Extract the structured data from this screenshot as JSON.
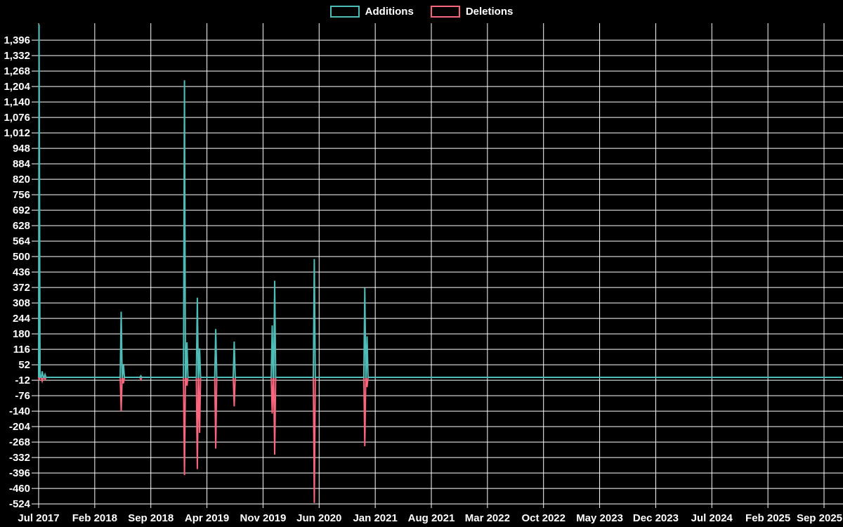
{
  "legend": {
    "additions_label": "Additions",
    "deletions_label": "Deletions"
  },
  "colors": {
    "background": "#000000",
    "gridline": "#ffffff",
    "label_text": "#ffffff",
    "additions": "#4FBDB7",
    "deletions": "#F8657D"
  },
  "chart_data": {
    "type": "line",
    "title": "",
    "legend_entries": [
      {
        "label": "Additions",
        "color": "#4FBDB7"
      },
      {
        "label": "Deletions",
        "color": "#F8657D"
      }
    ],
    "legend_position": "top-center",
    "grid": true,
    "xlabel": "",
    "ylabel": "",
    "y_axis": {
      "min": -524,
      "max": 1396,
      "tick_step": 64
    },
    "y_tick_labels": [
      "1,396",
      "1,332",
      "1,268",
      "1,204",
      "1,140",
      "1,076",
      "1,012",
      "948",
      "884",
      "820",
      "756",
      "692",
      "628",
      "564",
      "500",
      "436",
      "372",
      "308",
      "244",
      "180",
      "116",
      "52",
      "-12",
      "-76",
      "-140",
      "-204",
      "-268",
      "-332",
      "-396",
      "-460",
      "-524"
    ],
    "x_axis": {
      "start": "Jul 2017",
      "end": "Sep 2025",
      "tick_every_months": 7,
      "total_months": 98
    },
    "x_tick_labels": [
      "Jul 2017",
      "Feb 2018",
      "Sep 2018",
      "Apr 2019",
      "Nov 2019",
      "Jun 2020",
      "Jan 2021",
      "Aug 2021",
      "Mar 2022",
      "Oct 2022",
      "May 2023",
      "Dec 2023",
      "Jul 2024",
      "Feb 2025",
      "Sep 2025"
    ],
    "baseline_value": 0,
    "series_names": [
      "Additions",
      "Deletions"
    ],
    "events": [
      {
        "month": 0.05,
        "additions": 1460,
        "deletions": -12
      },
      {
        "month": 0.45,
        "additions": 25,
        "deletions": -15
      },
      {
        "month": 0.8,
        "additions": 12,
        "deletions": -8
      },
      {
        "month": 10.3,
        "additions": 272,
        "deletions": -140
      },
      {
        "month": 10.58,
        "additions": 55,
        "deletions": -25
      },
      {
        "month": 12.75,
        "additions": 6,
        "deletions": -9
      },
      {
        "month": 18.2,
        "additions": 1230,
        "deletions": -405
      },
      {
        "month": 18.5,
        "additions": 145,
        "deletions": -35
      },
      {
        "month": 19.8,
        "additions": 330,
        "deletions": -380
      },
      {
        "month": 20.08,
        "additions": 120,
        "deletions": -230
      },
      {
        "month": 22.1,
        "additions": 200,
        "deletions": -295
      },
      {
        "month": 24.4,
        "additions": 148,
        "deletions": -120
      },
      {
        "month": 29.15,
        "additions": 215,
        "deletions": -150
      },
      {
        "month": 29.45,
        "additions": 400,
        "deletions": -320
      },
      {
        "month": 34.4,
        "additions": 490,
        "deletions": -520
      },
      {
        "month": 40.7,
        "additions": 370,
        "deletions": -285
      },
      {
        "month": 40.98,
        "additions": 170,
        "deletions": -40
      }
    ]
  }
}
